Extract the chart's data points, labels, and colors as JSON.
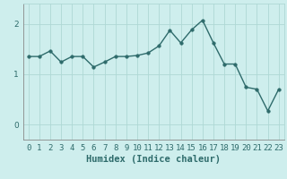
{
  "x": [
    0,
    1,
    2,
    3,
    4,
    5,
    6,
    7,
    8,
    9,
    10,
    11,
    12,
    13,
    14,
    15,
    16,
    17,
    18,
    19,
    20,
    21,
    22,
    23
  ],
  "y": [
    1.35,
    1.35,
    1.46,
    1.24,
    1.35,
    1.35,
    1.14,
    1.24,
    1.35,
    1.35,
    1.37,
    1.42,
    1.56,
    1.87,
    1.62,
    1.88,
    2.07,
    1.62,
    1.2,
    1.2,
    0.74,
    0.7,
    0.27,
    0.7
  ],
  "line_color": "#2e6b6b",
  "marker": "o",
  "marker_size": 2.5,
  "linewidth": 1.0,
  "xlabel": "Humidex (Indice chaleur)",
  "xlim": [
    -0.5,
    23.5
  ],
  "ylim": [
    -0.3,
    2.4
  ],
  "yticks": [
    0,
    1,
    2
  ],
  "xtick_labels": [
    "0",
    "1",
    "2",
    "3",
    "4",
    "5",
    "6",
    "7",
    "8",
    "9",
    "10",
    "11",
    "12",
    "13",
    "14",
    "15",
    "16",
    "17",
    "18",
    "19",
    "20",
    "21",
    "22",
    "23"
  ],
  "bg_color": "#ceeeed",
  "grid_color": "#aed8d5",
  "xlabel_color": "#2e6b6b",
  "tick_color": "#2e6b6b",
  "xlabel_fontsize": 7.5,
  "tick_fontsize": 6.5
}
